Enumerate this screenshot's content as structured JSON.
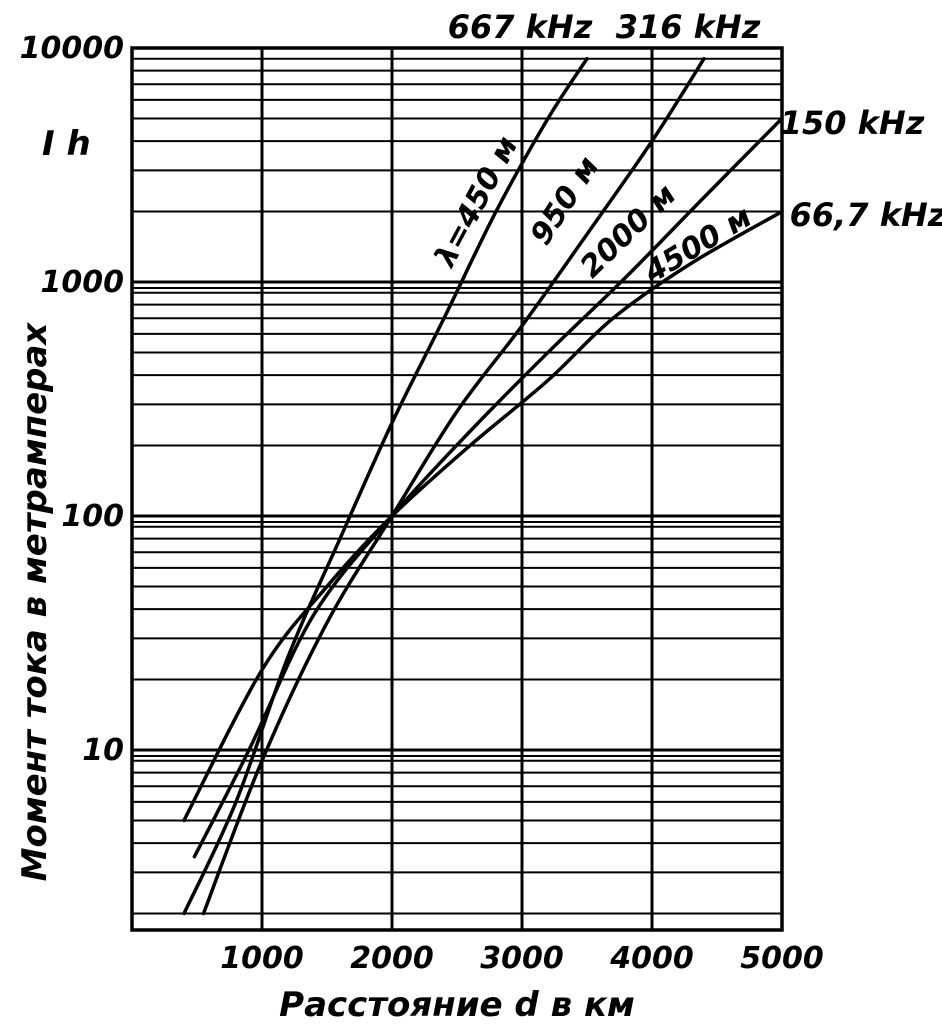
{
  "chart_data": {
    "type": "line",
    "title": "",
    "xlabel": "Расстояние d в км",
    "ylabel": "Момент тока в метрамперах",
    "y_unit_label": "I h",
    "xlim": [
      0,
      5000
    ],
    "ylim": [
      2,
      10000
    ],
    "y_scale": "log",
    "grid": true,
    "x_ticks": [
      {
        "value": 1000,
        "label": "1000"
      },
      {
        "value": 2000,
        "label": "2000"
      },
      {
        "value": 3000,
        "label": "3000"
      },
      {
        "value": 4000,
        "label": "4000"
      },
      {
        "value": 5000,
        "label": "5000"
      }
    ],
    "y_ticks": [
      {
        "value": 10,
        "label": "10"
      },
      {
        "value": 100,
        "label": "100"
      },
      {
        "value": 1000,
        "label": "1000"
      },
      {
        "value": 10000,
        "label": "10000"
      }
    ],
    "series": [
      {
        "name": "667 kHz",
        "wavelength_label": "λ=450 м",
        "x": [
          400,
          800,
          1200,
          1600,
          2000,
          2400,
          2800,
          3200,
          3500
        ],
        "y": [
          2,
          6,
          25,
          80,
          250,
          700,
          2000,
          5000,
          9000
        ]
      },
      {
        "name": "316 kHz",
        "wavelength_label": "950 м",
        "x": [
          550,
          1000,
          1500,
          2000,
          2500,
          3000,
          3500,
          4000,
          4400
        ],
        "y": [
          2,
          9,
          35,
          100,
          280,
          650,
          1600,
          4000,
          9000
        ]
      },
      {
        "name": "150 kHz",
        "wavelength_label": "2000 м",
        "x": [
          480,
          900,
          1400,
          2000,
          2600,
          3200,
          3800,
          4400,
          5000
        ],
        "y": [
          3.5,
          10,
          38,
          100,
          230,
          500,
          1050,
          2300,
          5000
        ]
      },
      {
        "name": "66,7 kHz",
        "wavelength_label": "4500 м",
        "x": [
          400,
          1000,
          1500,
          2000,
          2600,
          3200,
          3700,
          4300,
          5000
        ],
        "y": [
          5,
          22,
          50,
          100,
          200,
          380,
          700,
          1200,
          2000
        ]
      }
    ]
  }
}
